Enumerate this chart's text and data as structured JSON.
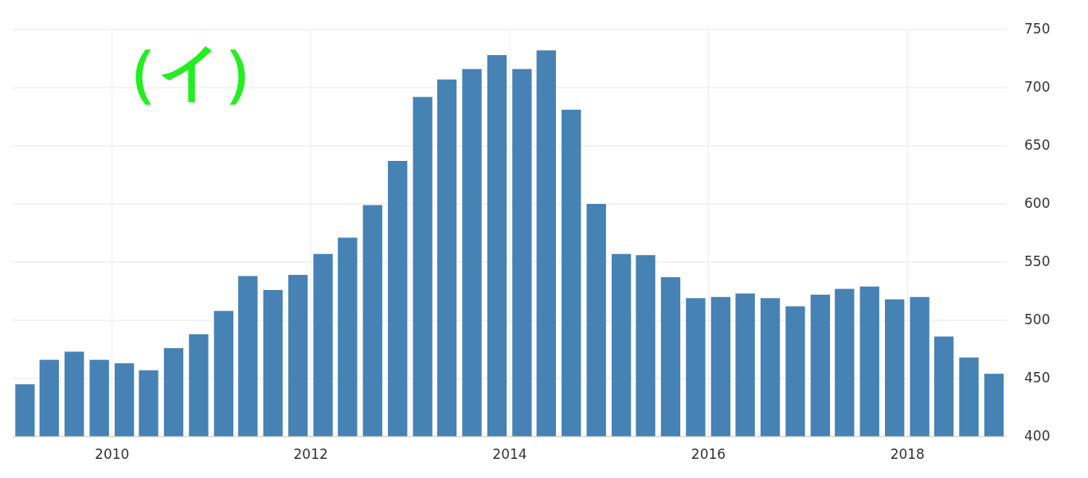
{
  "chart_data": {
    "type": "bar",
    "title": "（イ）",
    "x": [
      "2009-02-15",
      "2009-05-15",
      "2009-08-15",
      "2009-11-15",
      "2010-02-15",
      "2010-05-15",
      "2010-08-15",
      "2010-11-15",
      "2011-02-15",
      "2011-05-15",
      "2011-08-15",
      "2011-11-15",
      "2012-02-15",
      "2012-05-15",
      "2012-08-15",
      "2012-11-15",
      "2013-02-15",
      "2013-05-15",
      "2013-08-15",
      "2013-11-15",
      "2014-02-15",
      "2014-05-15",
      "2014-08-15",
      "2014-11-15",
      "2015-02-15",
      "2015-05-15",
      "2015-08-15",
      "2015-11-15",
      "2016-02-15",
      "2016-05-15",
      "2016-08-15",
      "2016-11-15",
      "2017-02-15",
      "2017-05-15",
      "2017-08-15",
      "2017-11-15",
      "2018-02-15",
      "2018-05-15",
      "2018-08-15",
      "2018-11-15"
    ],
    "values": [
      445,
      466,
      473,
      466,
      463,
      457,
      476,
      488,
      508,
      538,
      526,
      539,
      557,
      571,
      599,
      637,
      692,
      707,
      716,
      728,
      716,
      732,
      681,
      600,
      557,
      556,
      537,
      519,
      520,
      523,
      519,
      512,
      522,
      527,
      529,
      518,
      520,
      486,
      468,
      454
    ],
    "color": "#4682b4",
    "xlim": [
      "2009-01-01",
      "2019-01-01"
    ],
    "xticks": [
      {
        "value": "2010-01-01",
        "label": "2010"
      },
      {
        "value": "2012-01-01",
        "label": "2012"
      },
      {
        "value": "2014-01-01",
        "label": "2014"
      },
      {
        "value": "2016-01-01",
        "label": "2016"
      },
      {
        "value": "2018-01-01",
        "label": "2018"
      }
    ],
    "ylim": [
      400,
      750
    ],
    "yticks": [
      400,
      450,
      500,
      550,
      600,
      650,
      700,
      750
    ],
    "grid": true
  }
}
